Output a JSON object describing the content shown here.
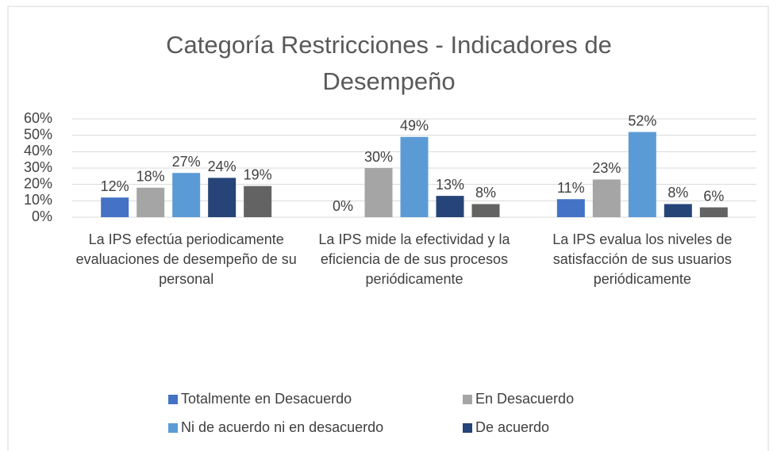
{
  "chart_data": {
    "type": "bar",
    "title": "Categoría Restricciones - Indicadores de Desempeño",
    "categories": [
      "La IPS efectúa periodicamente evaluaciones de desempeño de su personal",
      "La IPS mide la efectividad y la eficiencia de de sus procesos periódicamente",
      "La IPS evalua los niveles de satisfacción de sus usuarios periódicamente"
    ],
    "series": [
      {
        "name": "Totalmente en Desacuerdo",
        "color": "#4472c4",
        "values": [
          12,
          0,
          11
        ],
        "value_labels": [
          "12%",
          "0%",
          "11%"
        ]
      },
      {
        "name": "En Desacuerdo",
        "color": "#a5a5a5",
        "values": [
          18,
          30,
          23
        ],
        "value_labels": [
          "18%",
          "30%",
          "23%"
        ]
      },
      {
        "name": "Ni de acuerdo ni en desacuerdo",
        "color": "#5b9bd5",
        "values": [
          27,
          49,
          52
        ],
        "value_labels": [
          "27%",
          "49%",
          "52%"
        ]
      },
      {
        "name": "De acuerdo",
        "color": "#264478",
        "values": [
          24,
          13,
          8
        ],
        "value_labels": [
          "24%",
          "13%",
          "8%"
        ]
      },
      {
        "color": "#636363",
        "values": [
          19,
          8,
          6
        ],
        "value_labels": [
          "19%",
          "8%",
          "6%"
        ]
      }
    ],
    "ylim": [
      0,
      60
    ],
    "yticks": [
      {
        "value": 0,
        "label": "0%"
      },
      {
        "value": 10,
        "label": "10%"
      },
      {
        "value": 20,
        "label": "20%"
      },
      {
        "value": 30,
        "label": "30%"
      },
      {
        "value": 40,
        "label": "40%"
      },
      {
        "value": 50,
        "label": "50%"
      },
      {
        "value": 60,
        "label": "60%"
      }
    ],
    "grid": true,
    "legend": "bottom"
  }
}
